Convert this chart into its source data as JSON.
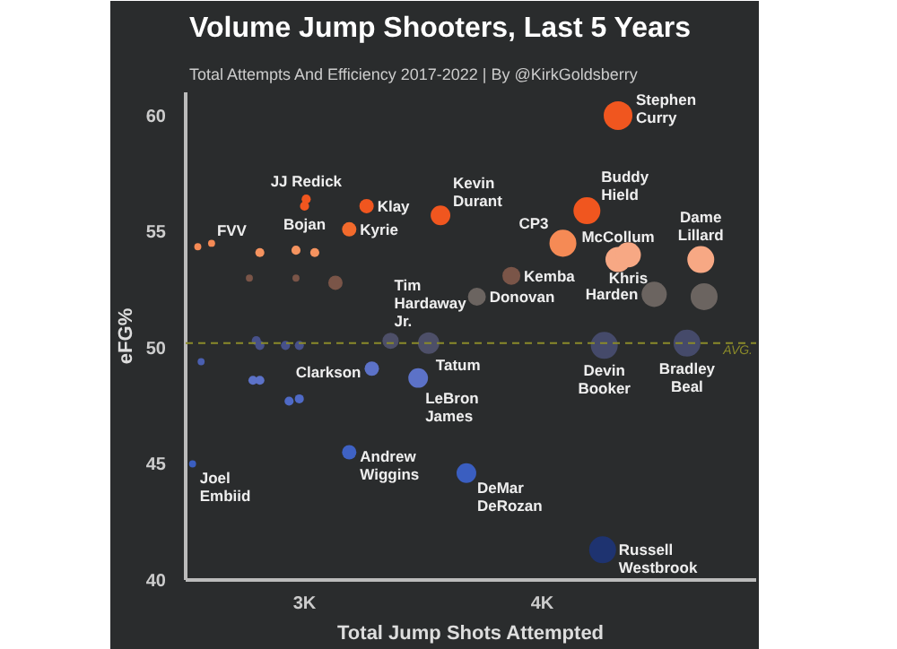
{
  "chart_data": {
    "type": "bubble",
    "title": "Volume Jump Shooters, Last 5 Years",
    "subtitle": "Total Attempts And Efficiency 2017-2022 | By @KirkGoldsberry",
    "xlabel": "Total Jump Shots Attempted",
    "ylabel": "eFG%",
    "xlim": [
      2500,
      4900
    ],
    "ylim": [
      40,
      61
    ],
    "xticks": [
      {
        "value": 3000,
        "label": "3K"
      },
      {
        "value": 4000,
        "label": "4K"
      }
    ],
    "yticks": [
      40,
      45,
      50,
      55,
      60
    ],
    "x": [
      4319,
      3007,
      3000,
      3261,
      3572,
      4188,
      3188,
      4087,
      2551,
      2609,
      2812,
      2964,
      3043,
      4319,
      4362,
      4667,
      2768,
      2964,
      3130,
      3870,
      3725,
      4471,
      4681,
      3362,
      3522,
      4261,
      4609,
      2797,
      2812,
      2920,
      2978,
      2565,
      3283,
      3478,
      2783,
      2812,
      2935,
      2978,
      3188,
      3681,
      2529,
      4254
    ],
    "values": [
      60.0,
      56.4,
      56.1,
      56.1,
      55.7,
      55.9,
      55.1,
      54.5,
      54.35,
      54.5,
      54.1,
      54.2,
      54.1,
      53.8,
      54.0,
      53.8,
      53.0,
      53.0,
      52.8,
      53.1,
      52.2,
      52.3,
      52.2,
      50.3,
      50.2,
      50.1,
      50.2,
      50.3,
      50.1,
      50.1,
      50.1,
      49.4,
      49.1,
      48.7,
      48.6,
      48.6,
      47.7,
      47.8,
      45.5,
      44.6,
      45.0,
      41.3
    ],
    "sizes": [
      1,
      0.1,
      0.1,
      0.25,
      0.47,
      0.88,
      0.25,
      0.88,
      0.06,
      0.06,
      0.1,
      0.1,
      0.1,
      0.77,
      0.77,
      0.88,
      0.06,
      0.06,
      0.25,
      0.39,
      0.39,
      0.77,
      0.88,
      0.32,
      0.56,
      0.88,
      0.88,
      0.1,
      0.1,
      0.1,
      0.1,
      0.06,
      0.25,
      0.47,
      0.1,
      0.1,
      0.1,
      0.1,
      0.25,
      0.47,
      0.06,
      0.88
    ],
    "colors": [
      "#f0561f",
      "#f0561f",
      "#f0561f",
      "#f0561f",
      "#f0561f",
      "#f0561f",
      "#f26a2c",
      "#f58a55",
      "#f58a55",
      "#f58a55",
      "#f5935f",
      "#f5935f",
      "#f5935f",
      "#f7a884",
      "#f7a884",
      "#f7a884",
      "#7a5548",
      "#7a5548",
      "#7a5548",
      "#7a5548",
      "#6b6460",
      "#6b6460",
      "#6b6460",
      "#4d4f68",
      "#4d4f68",
      "#454a6a",
      "#454a6a",
      "#47518a",
      "#47518a",
      "#47518a",
      "#47518a",
      "#4a5fb0",
      "#5c72c8",
      "#5c72c8",
      "#5c72c8",
      "#5c72c8",
      "#4f6ac6",
      "#4f6ac6",
      "#3f62c4",
      "#3a5ec0",
      "#3a5ec0",
      "#1e3370"
    ],
    "ref_lines": [
      {
        "axis": "y",
        "value": 50.2,
        "label": "AVG.",
        "color": "#8a8a2a",
        "line_style": "dashed"
      }
    ],
    "annotations": [
      {
        "text": "Stephen\nCurry",
        "x": 4319,
        "y": 60.0
      },
      {
        "text": "JJ Redick",
        "x": 3007,
        "y": 56.4
      },
      {
        "text": "Bojan",
        "x": 3000,
        "y": 56.1
      },
      {
        "text": "Klay",
        "x": 3261,
        "y": 56.1
      },
      {
        "text": "Kevin\nDurant",
        "x": 3572,
        "y": 55.7
      },
      {
        "text": "Buddy\nHield",
        "x": 4188,
        "y": 55.9
      },
      {
        "text": "CP3",
        "x": 4087,
        "y": 54.5
      },
      {
        "text": "McCollum",
        "x": 4319,
        "y": 53.8
      },
      {
        "text": "Dame\nLillard",
        "x": 4667,
        "y": 53.8
      },
      {
        "text": "FVV",
        "x": 2609,
        "y": 54.5
      },
      {
        "text": "Kyrie",
        "x": 3188,
        "y": 55.1
      },
      {
        "text": "Tim\nHardaway\nJr.",
        "x": 3362,
        "y": 50.3
      },
      {
        "text": "Kemba",
        "x": 3870,
        "y": 53.1
      },
      {
        "text": "Khris",
        "x": 4362,
        "y": 54.0
      },
      {
        "text": "Donovan",
        "x": 3725,
        "y": 52.2
      },
      {
        "text": "Harden",
        "x": 4471,
        "y": 52.3
      },
      {
        "text": "Tatum",
        "x": 3522,
        "y": 50.2
      },
      {
        "text": "Devin\nBooker",
        "x": 4261,
        "y": 50.1
      },
      {
        "text": "Bradley\nBeal",
        "x": 4609,
        "y": 50.2
      },
      {
        "text": "Clarkson",
        "x": 3283,
        "y": 49.1
      },
      {
        "text": "LeBron\nJames",
        "x": 3478,
        "y": 48.7
      },
      {
        "text": "Joel\nEmbiid",
        "x": 2529,
        "y": 45.0
      },
      {
        "text": "Andrew\nWiggins",
        "x": 3188,
        "y": 45.5
      },
      {
        "text": "DeMar\nDeRozan",
        "x": 3681,
        "y": 44.6
      },
      {
        "text": "Russell\nWestbrook",
        "x": 4254,
        "y": 41.3
      }
    ]
  }
}
